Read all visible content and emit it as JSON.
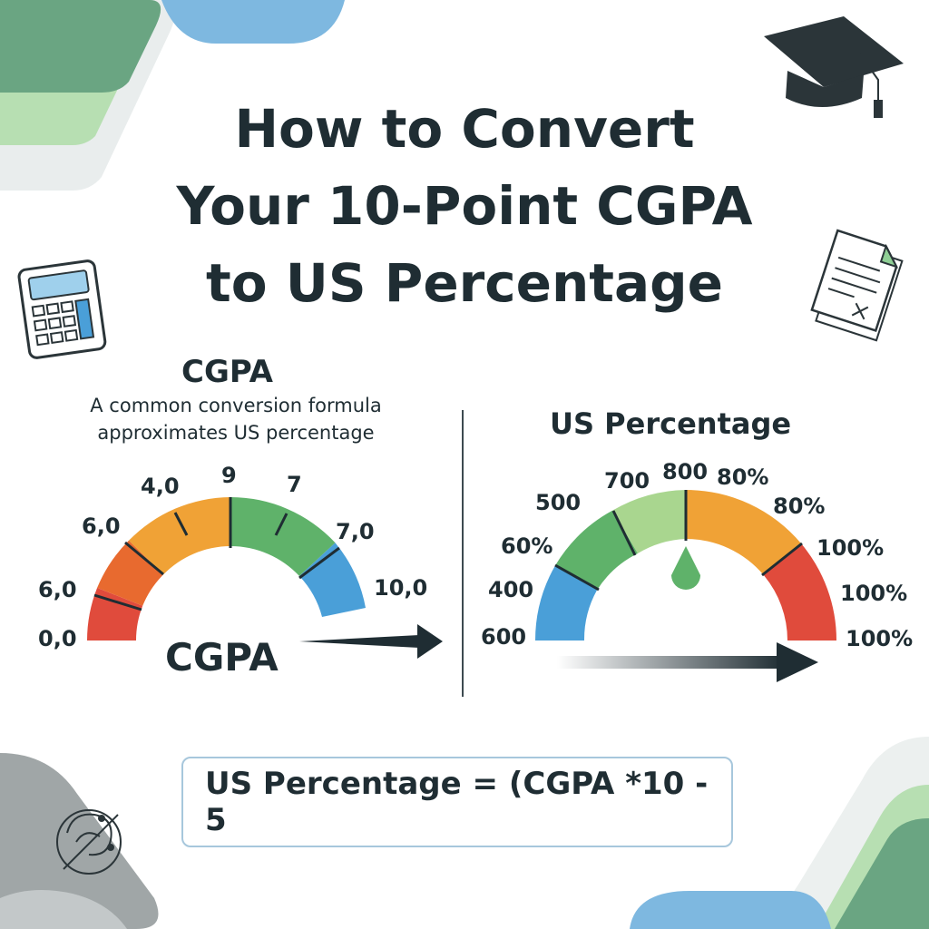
{
  "title": {
    "line1": "How to Convert",
    "line2": "Your 10-Point CGPA",
    "line3": "to US Percentage"
  },
  "cgpa_panel": {
    "heading": "CGPA",
    "subtitle_line1": "A common conversion formula",
    "subtitle_line2": "approximates US percentage",
    "gauge_caption": "CGPA",
    "tick_labels": [
      "0,0",
      "6,0",
      "6,0",
      "4,0",
      "9",
      "7",
      "7,0",
      "10,0"
    ]
  },
  "us_panel": {
    "heading": "US Percentage",
    "tick_labels": [
      "600",
      "400",
      "60%",
      "500",
      "700",
      "800",
      "80%",
      "80%",
      "100%",
      "100%",
      "100%"
    ]
  },
  "formula": {
    "text": "US Percentage = (CGPA *10 - 5"
  },
  "icons": [
    "graduation-cap-icon",
    "calculator-icon",
    "document-icon",
    "brain-icon"
  ],
  "colors": {
    "red": "#e04b3c",
    "orange": "#f0a236",
    "green": "#5fb26a",
    "light_green": "#a9d68f",
    "blue": "#4a9fd8",
    "text": "#1f2d33"
  }
}
